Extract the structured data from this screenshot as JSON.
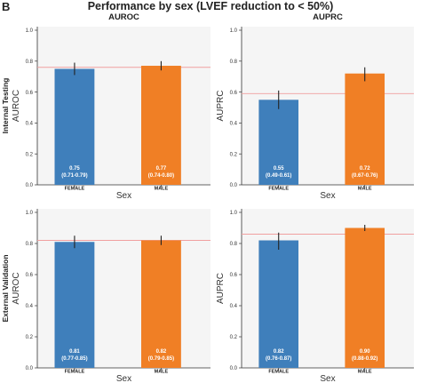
{
  "panel_letter": "B",
  "title": "Performance by sex (LVEF reduction to < 50%)",
  "colors": {
    "female": "#3f7fbb",
    "male": "#f07f25",
    "reference_line": "#f0a0a0",
    "error_bar": "#222222"
  },
  "chart_data": [
    {
      "type": "bar",
      "title": "AUROC",
      "row_label": "Internal Testing",
      "xlabel": "Sex",
      "ylabel": "AUROC",
      "ylim": [
        0,
        1.0
      ],
      "yticks": [
        "0.0",
        "0.2",
        "0.4",
        "0.6",
        "0.8",
        "1.0"
      ],
      "categories": [
        "FEMALE",
        "MALE"
      ],
      "values": [
        0.75,
        0.77
      ],
      "ci": [
        [
          0.71,
          0.79
        ],
        [
          0.74,
          0.8
        ]
      ],
      "labels": [
        [
          "0.75",
          "(0.71-0.79)"
        ],
        [
          "0.77",
          "(0.74-0.80)"
        ]
      ],
      "reference_line": 0.76
    },
    {
      "type": "bar",
      "title": "AUPRC",
      "row_label": "",
      "xlabel": "Sex",
      "ylabel": "AUPRC",
      "ylim": [
        0,
        1.0
      ],
      "yticks": [
        "0.0",
        "0.2",
        "0.4",
        "0.6",
        "0.8",
        "1.0"
      ],
      "categories": [
        "FEMALE",
        "MALE"
      ],
      "values": [
        0.55,
        0.72
      ],
      "ci": [
        [
          0.49,
          0.61
        ],
        [
          0.67,
          0.76
        ]
      ],
      "labels": [
        [
          "0.55",
          "(0.49-0.61)"
        ],
        [
          "0.72",
          "(0.67-0.76)"
        ]
      ],
      "reference_line": 0.59
    },
    {
      "type": "bar",
      "title": "",
      "row_label": "External Validation",
      "xlabel": "Sex",
      "ylabel": "AUROC",
      "ylim": [
        0,
        1.0
      ],
      "yticks": [
        "0.0",
        "0.2",
        "0.4",
        "0.6",
        "0.8",
        "1.0"
      ],
      "categories": [
        "FEMALE",
        "MALE"
      ],
      "values": [
        0.81,
        0.82
      ],
      "ci": [
        [
          0.77,
          0.85
        ],
        [
          0.79,
          0.85
        ]
      ],
      "labels": [
        [
          "0.81",
          "(0.77-0.85)"
        ],
        [
          "0.82",
          "(0.79-0.85)"
        ]
      ],
      "reference_line": 0.82
    },
    {
      "type": "bar",
      "title": "",
      "row_label": "",
      "xlabel": "Sex",
      "ylabel": "AUPRC",
      "ylim": [
        0,
        1.0
      ],
      "yticks": [
        "0.0",
        "0.2",
        "0.4",
        "0.6",
        "0.8",
        "1.0"
      ],
      "categories": [
        "FEMALE",
        "MALE"
      ],
      "values": [
        0.82,
        0.9
      ],
      "ci": [
        [
          0.76,
          0.87
        ],
        [
          0.88,
          0.92
        ]
      ],
      "labels": [
        [
          "0.82",
          "(0.76-0.87)"
        ],
        [
          "0.90",
          "(0.88-0.92)"
        ]
      ],
      "reference_line": 0.86
    }
  ]
}
